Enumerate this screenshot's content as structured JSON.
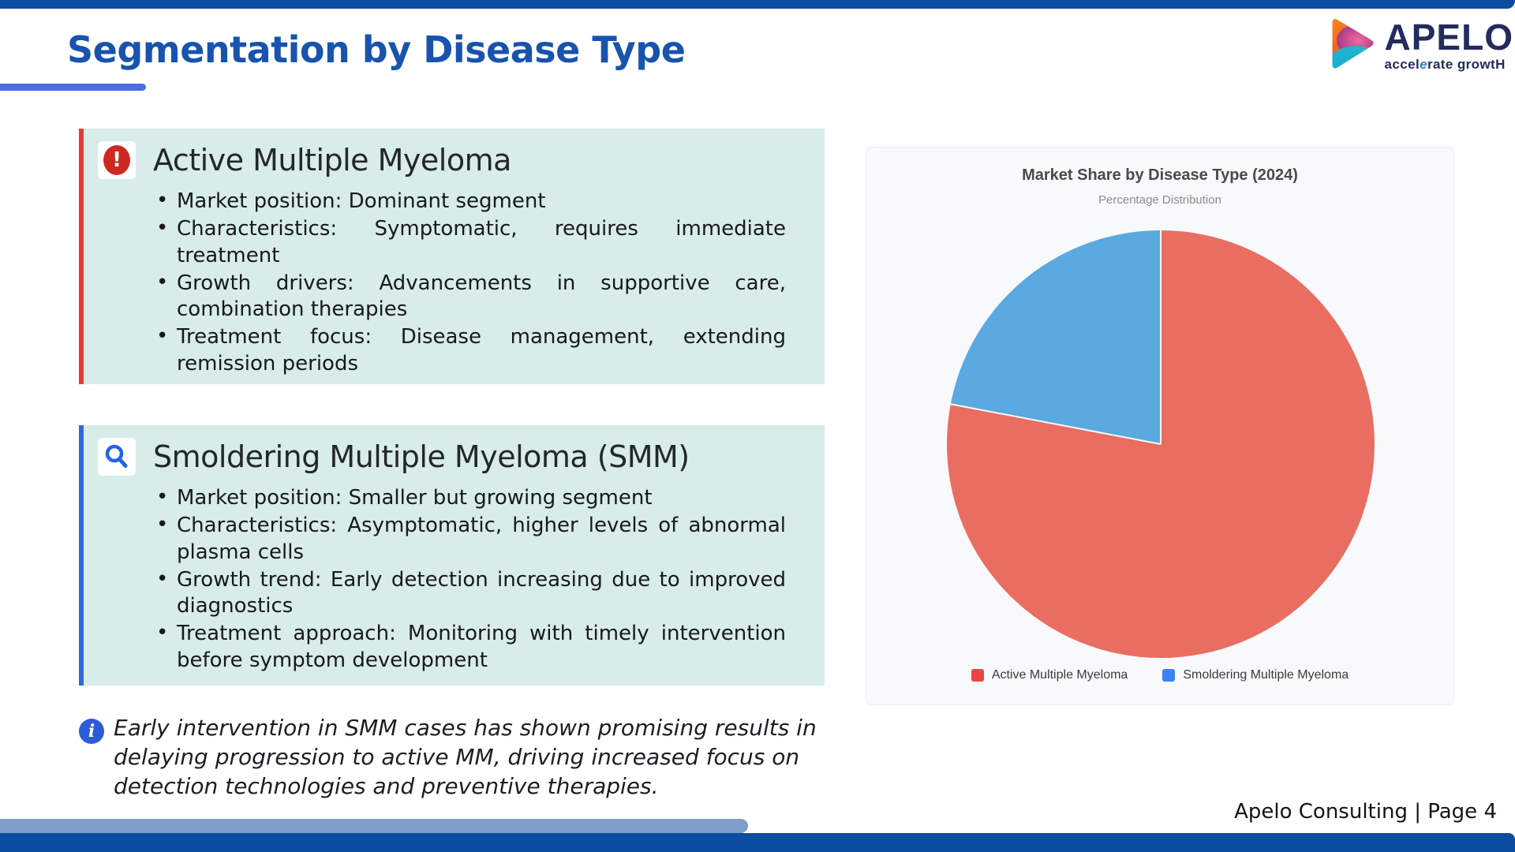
{
  "header": {
    "title": "Segmentation by Disease Type"
  },
  "logo": {
    "wordmark": "APELO",
    "tagline_pre": "accel",
    "tagline_accent": "e",
    "tagline_post": "rate growtH"
  },
  "colors": {
    "top_bar": "#0B4DA1",
    "title_blue": "#1853AE",
    "underline_blue": "#4E6CE3",
    "box_background": "#D8ECE9",
    "box1_accent": "#E23B38",
    "box2_accent": "#2F6AD9",
    "alert_icon_red": "#CF2823",
    "search_icon_blue": "#2563EB",
    "info_icon_blue": "#2C5CD8",
    "bottom_accent": "#7E9DC8"
  },
  "sections": {
    "box1": {
      "title": "Active Multiple Myeloma",
      "icon": "alert-icon",
      "bullets": [
        "Market position: Dominant segment",
        "Characteristics: Symptomatic, requires immediate treatment",
        "Growth drivers: Advancements in supportive care, combination therapies",
        "Treatment focus: Disease management, extending remission periods"
      ]
    },
    "box2": {
      "title": "Smoldering Multiple Myeloma (SMM)",
      "icon": "search-icon",
      "bullets": [
        "Market position: Smaller but growing segment",
        "Characteristics: Asymptomatic, higher levels of abnormal plasma cells",
        "Growth trend: Early detection increasing due to improved diagnostics",
        "Treatment approach: Monitoring with timely intervention before symptom development"
      ]
    }
  },
  "note": {
    "text": "Early intervention in SMM cases has shown promising results in delaying progression to active MM, driving increased focus on detection technologies and preventive therapies."
  },
  "chart_data": {
    "type": "pie",
    "title": "Market Share by Disease Type (2024)",
    "subtitle": "Percentage Distribution",
    "categories": [
      "Active Multiple Myeloma",
      "Smoldering Multiple Myeloma"
    ],
    "values": [
      78,
      22
    ],
    "slice_colors": [
      "#EA6D62",
      "#5AA9E0"
    ],
    "legend_colors": [
      "#EF4444",
      "#3B82F6"
    ],
    "legend_position": "bottom",
    "start_angle_deg": 0,
    "direction": "clockwise"
  },
  "footer": {
    "text": "Apelo Consulting | Page 4"
  }
}
